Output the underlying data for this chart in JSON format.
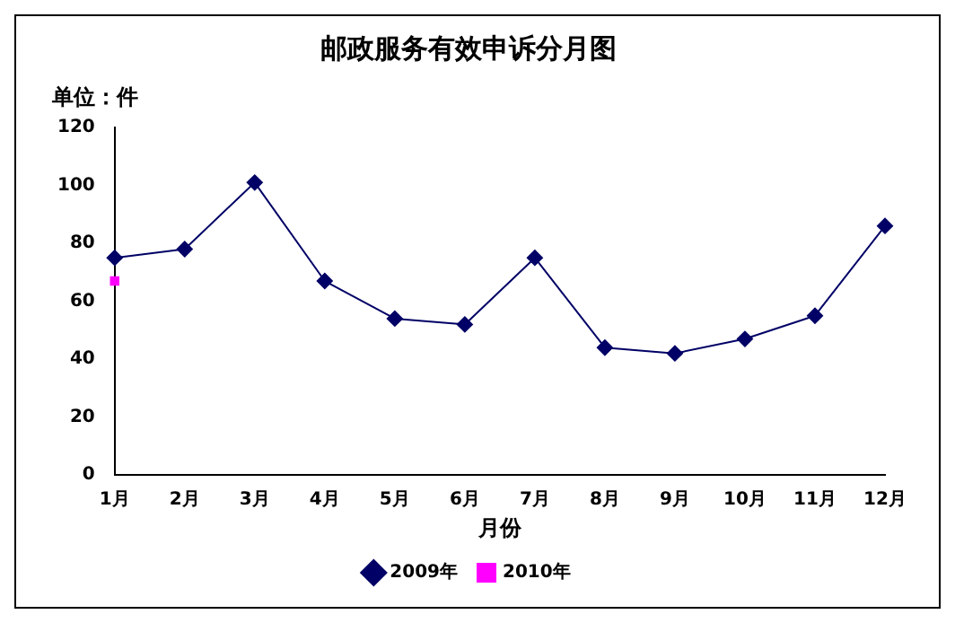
{
  "chart_data": {
    "type": "line",
    "title": "邮政服务有效申诉分月图",
    "ylabel": "单位：件",
    "xlabel": "月份",
    "categories": [
      "1月",
      "2月",
      "3月",
      "4月",
      "5月",
      "6月",
      "7月",
      "8月",
      "9月",
      "10月",
      "11月",
      "12月"
    ],
    "series": [
      {
        "name": "2009年",
        "color": "#000066",
        "marker": "diamond",
        "values": [
          75,
          78,
          101,
          67,
          54,
          52,
          75,
          44,
          42,
          47,
          55,
          86
        ]
      },
      {
        "name": "2010年",
        "color": "#ff00ff",
        "marker": "square",
        "values": [
          67,
          null,
          null,
          null,
          null,
          null,
          null,
          null,
          null,
          null,
          null,
          null
        ]
      }
    ],
    "ylim": [
      0,
      120
    ],
    "yticks": [
      0,
      20,
      40,
      60,
      80,
      100,
      120
    ],
    "grid": false,
    "legend": "bottom",
    "line_style": "solid"
  }
}
